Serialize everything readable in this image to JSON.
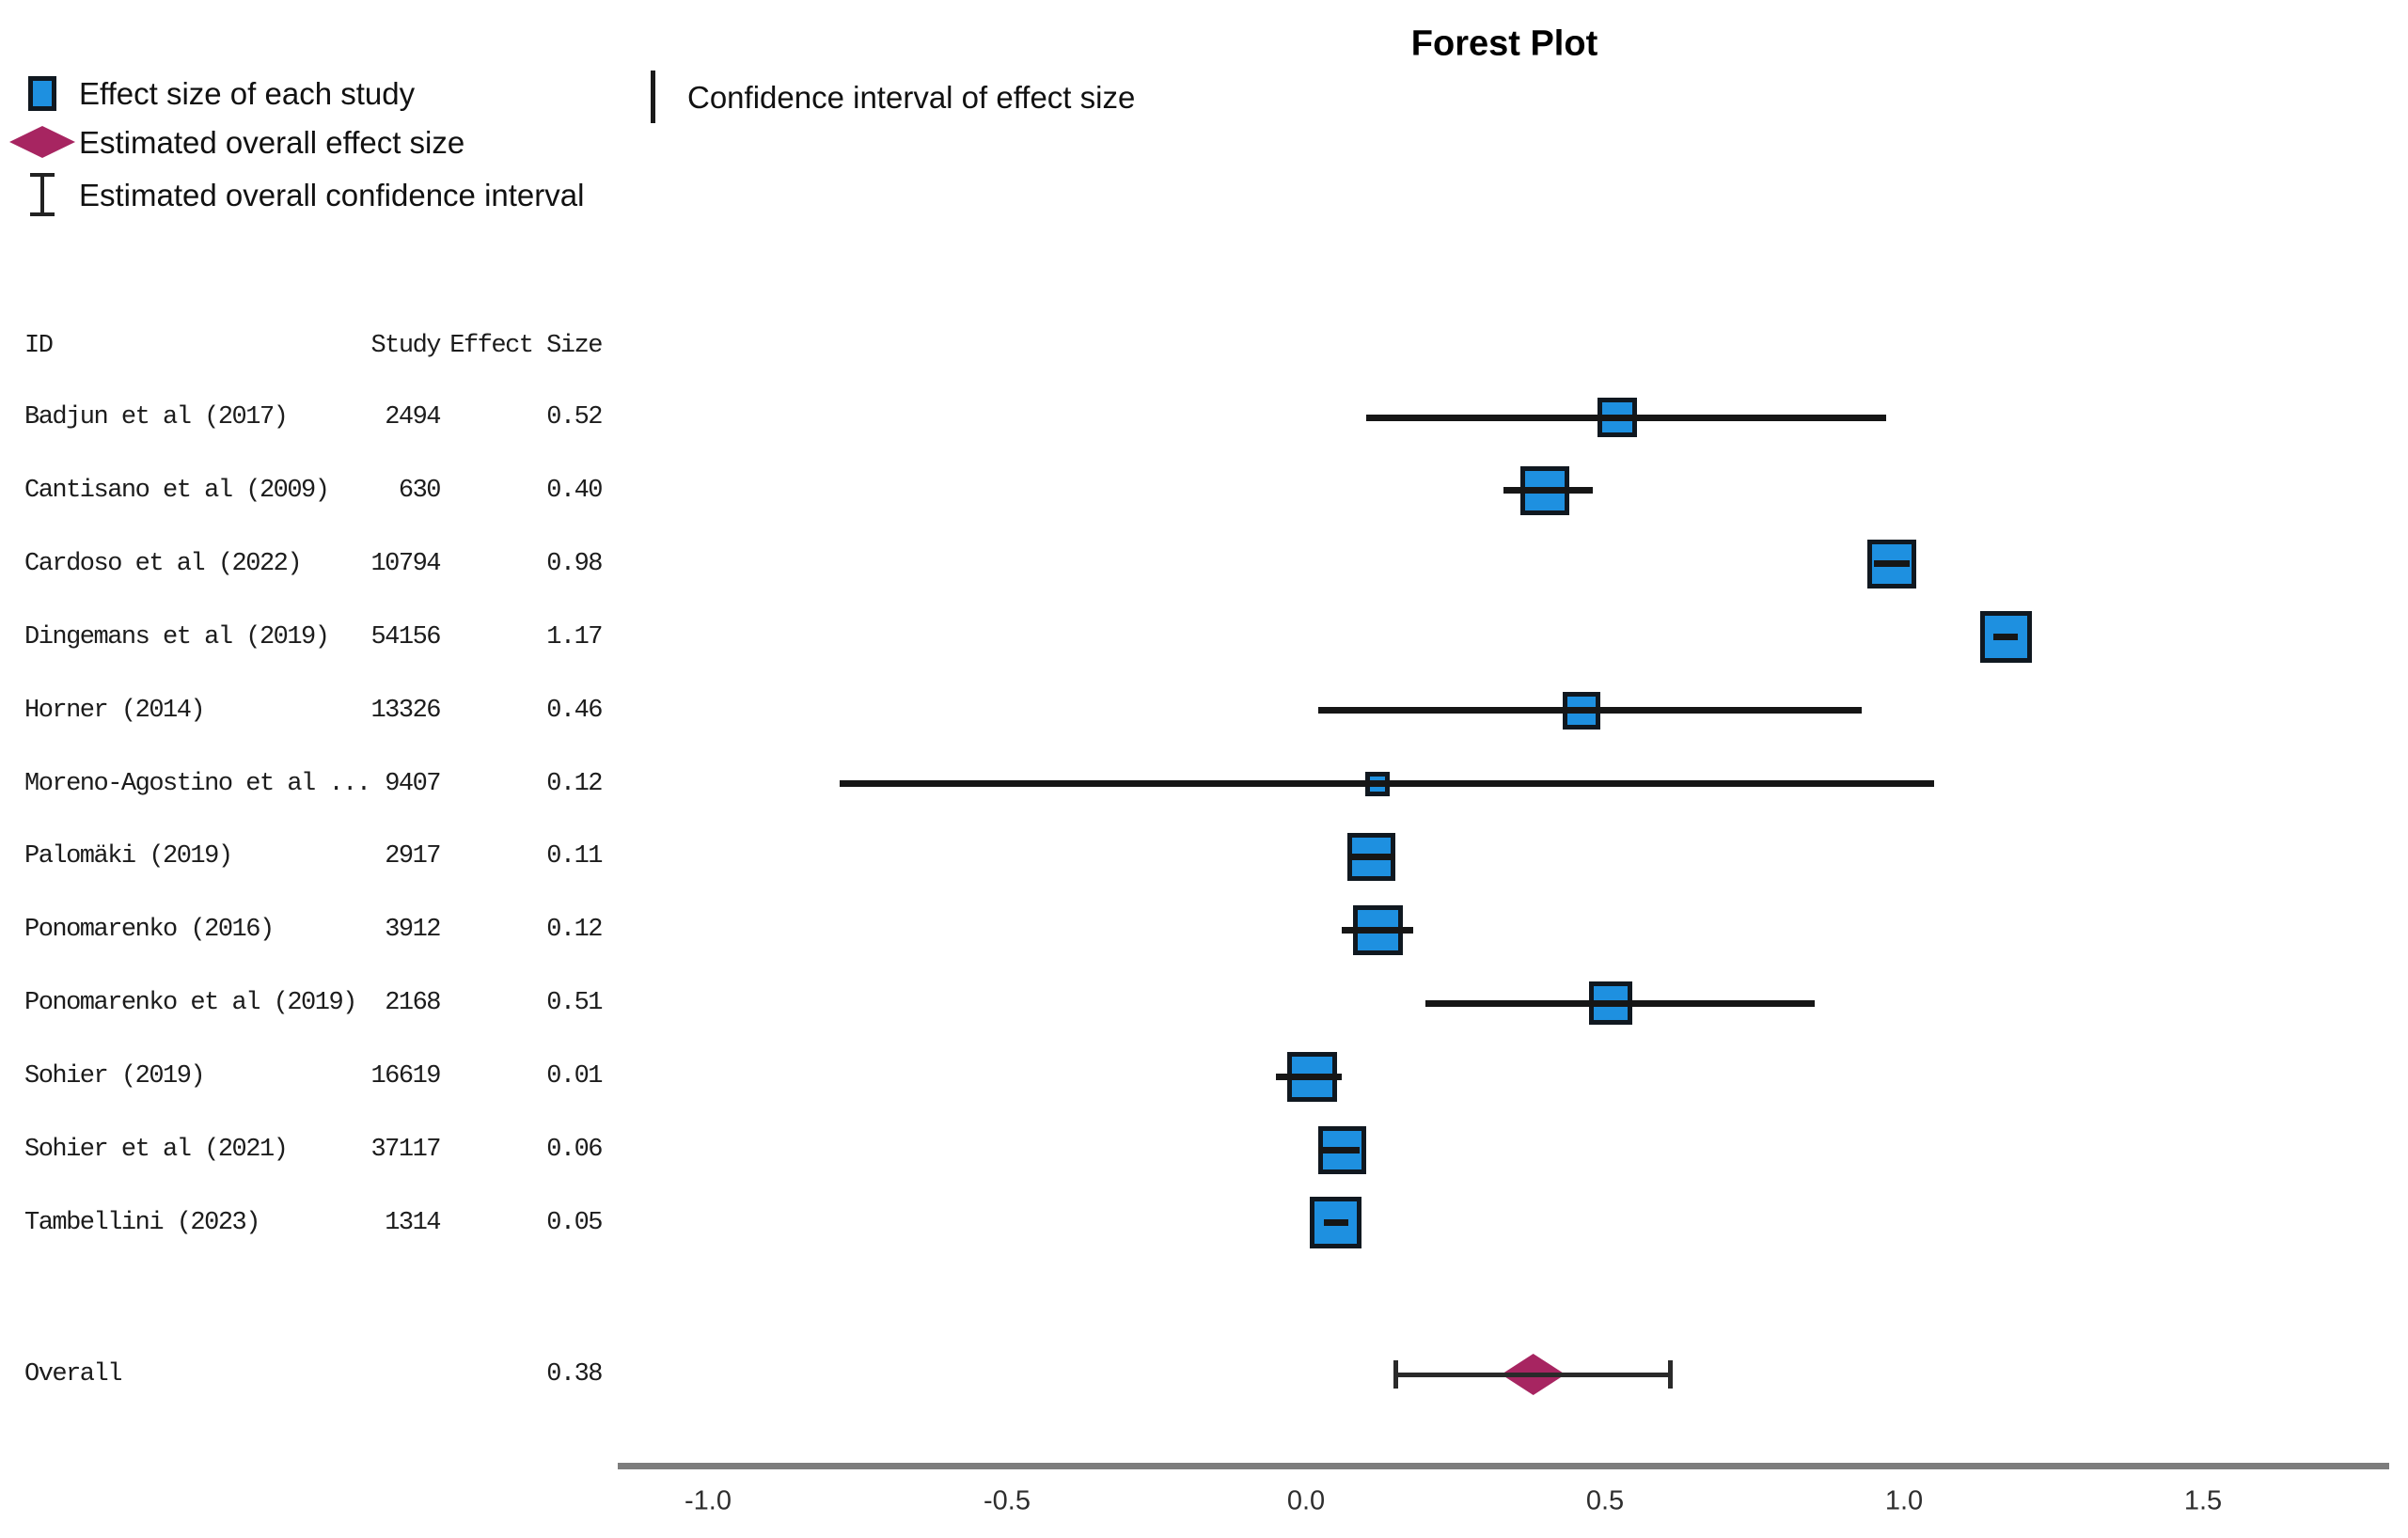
{
  "title": "Forest Plot",
  "legend": {
    "items": [
      {
        "icon": "effect-size-square",
        "label": "Effect size of each study"
      },
      {
        "icon": "overall-effect-diamond",
        "label": "Estimated overall effect size"
      },
      {
        "icon": "overall-ci-ibeam",
        "label": "Estimated overall confidence interval"
      }
    ],
    "secondary": [
      {
        "icon": "ci-line",
        "label": "Confidence interval of effect size"
      }
    ]
  },
  "table": {
    "headers": [
      "ID",
      "Study",
      "Effect Size"
    ]
  },
  "chart_data": {
    "type": "forest",
    "title": "Forest Plot",
    "x_axis": {
      "ticks": [
        -1.0,
        -0.5,
        0.0,
        0.5,
        1.0,
        1.5
      ],
      "labels": [
        "-1.0",
        "-0.5",
        "0.0",
        "0.5",
        "1.0",
        "1.5"
      ],
      "xlim": [
        -1.15,
        1.81
      ],
      "grid": false
    },
    "legend_position": "top-left",
    "studies": [
      {
        "id": "Badjun et al (2017)",
        "study_size": "2494",
        "effect_size": 0.52,
        "effect_label": "0.52",
        "ci": [
          0.1,
          0.97
        ],
        "marker_size": 42
      },
      {
        "id": "Cantisano et al (2009)",
        "study_size": "630",
        "effect_size": 0.4,
        "effect_label": "0.40",
        "ci": [
          0.33,
          0.48
        ],
        "marker_size": 52
      },
      {
        "id": "Cardoso et al (2022)",
        "study_size": "10794",
        "effect_size": 0.98,
        "effect_label": "0.98",
        "ci": [
          0.95,
          1.01
        ],
        "marker_size": 52
      },
      {
        "id": "Dingemans et al (2019)",
        "study_size": "54156",
        "effect_size": 1.17,
        "effect_label": "1.17",
        "ci": [
          1.15,
          1.19
        ],
        "marker_size": 55
      },
      {
        "id": "Horner (2014)",
        "study_size": "13326",
        "effect_size": 0.46,
        "effect_label": "0.46",
        "ci": [
          0.02,
          0.93
        ],
        "marker_size": 40
      },
      {
        "id": "Moreno-Agostino et al ...",
        "study_size": "9407",
        "effect_size": 0.12,
        "effect_label": "0.12",
        "ci": [
          -0.78,
          1.05
        ],
        "marker_size": 26
      },
      {
        "id": "Palomäki (2019)",
        "study_size": "2917",
        "effect_size": 0.11,
        "effect_label": "0.11",
        "ci": [
          0.07,
          0.15
        ],
        "marker_size": 51
      },
      {
        "id": "Ponomarenko (2016)",
        "study_size": "3912",
        "effect_size": 0.12,
        "effect_label": "0.12",
        "ci": [
          0.06,
          0.18
        ],
        "marker_size": 53
      },
      {
        "id": "Ponomarenko et al (2019)",
        "study_size": "2168",
        "effect_size": 0.51,
        "effect_label": "0.51",
        "ci": [
          0.2,
          0.85
        ],
        "marker_size": 46
      },
      {
        "id": "Sohier (2019)",
        "study_size": "16619",
        "effect_size": 0.01,
        "effect_label": "0.01",
        "ci": [
          -0.05,
          0.06
        ],
        "marker_size": 53
      },
      {
        "id": "Sohier et al (2021)",
        "study_size": "37117",
        "effect_size": 0.06,
        "effect_label": "0.06",
        "ci": [
          0.02,
          0.09
        ],
        "marker_size": 51
      },
      {
        "id": "Tambellini (2023)",
        "study_size": "1314",
        "effect_size": 0.05,
        "effect_label": "0.05",
        "ci": [
          0.03,
          0.07
        ],
        "marker_size": 55
      }
    ],
    "overall": {
      "id": "Overall",
      "effect_size": 0.38,
      "effect_label": "0.38",
      "ci": [
        0.15,
        0.61
      ],
      "diamond_width": 68,
      "diamond_height": 44
    }
  },
  "colors": {
    "marker_fill": "#1e90e0",
    "marker_border": "#101820",
    "ci_line": "#161616",
    "overall_diamond": "#a72561",
    "overall_ci": "#2a2a2a",
    "axis_line": "#7d7d7d",
    "text": "#1c1c1c"
  }
}
